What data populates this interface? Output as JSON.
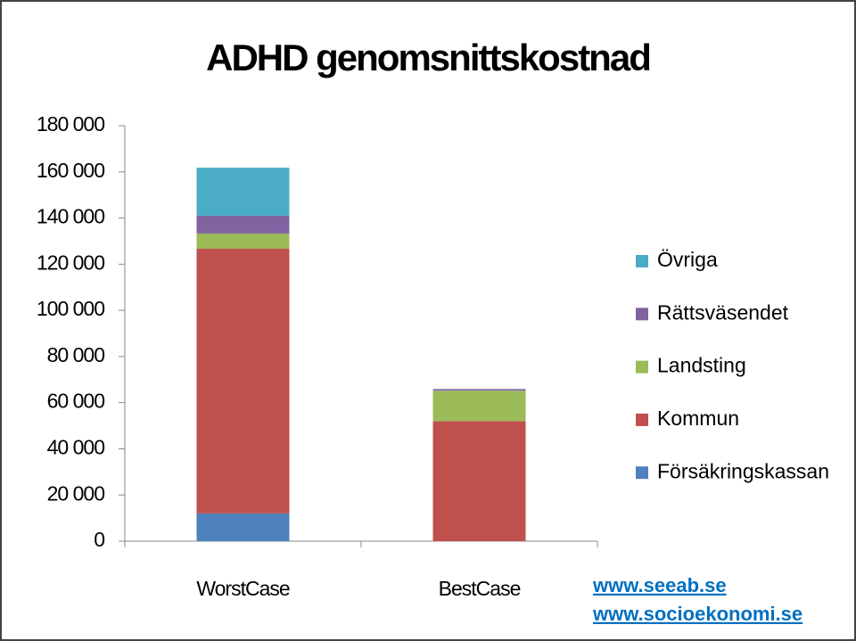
{
  "chart_data": {
    "type": "stacked_bar",
    "title": "ADHD genomsnittskostnad",
    "categories": [
      "WorstCase",
      "BestCase"
    ],
    "series": [
      {
        "name": "Försäkringskassan",
        "color": "#4f81bd",
        "values": [
          12000,
          0
        ]
      },
      {
        "name": "Kommun",
        "color": "#c0504d",
        "values": [
          114700,
          52000
        ]
      },
      {
        "name": "Landsting",
        "color": "#9bbb59",
        "values": [
          6600,
          13200
        ]
      },
      {
        "name": "Rättsväsendet",
        "color": "#8064a2",
        "values": [
          7700,
          700
        ]
      },
      {
        "name": "Övriga",
        "color": "#4bacc6",
        "values": [
          20800,
          0
        ]
      }
    ],
    "ylim": [
      0,
      180000
    ],
    "yticks": [
      0,
      {
        "value": 20000,
        "label": "20 000"
      },
      {
        "value": 40000,
        "label": "40 000"
      },
      {
        "value": 60000,
        "label": "60 000"
      },
      {
        "value": 80000,
        "label": "80 000"
      },
      {
        "value": 100000,
        "label": "100 000"
      },
      {
        "value": 120000,
        "label": "120 000"
      },
      {
        "value": 140000,
        "label": "140 000"
      },
      {
        "value": 160000,
        "label": "160 000"
      },
      {
        "value": 180000,
        "label": "180 000"
      }
    ],
    "grid": false,
    "legend": "right",
    "annotations": [
      "www.seeab.se",
      "www.socioekonomi.se"
    ]
  }
}
